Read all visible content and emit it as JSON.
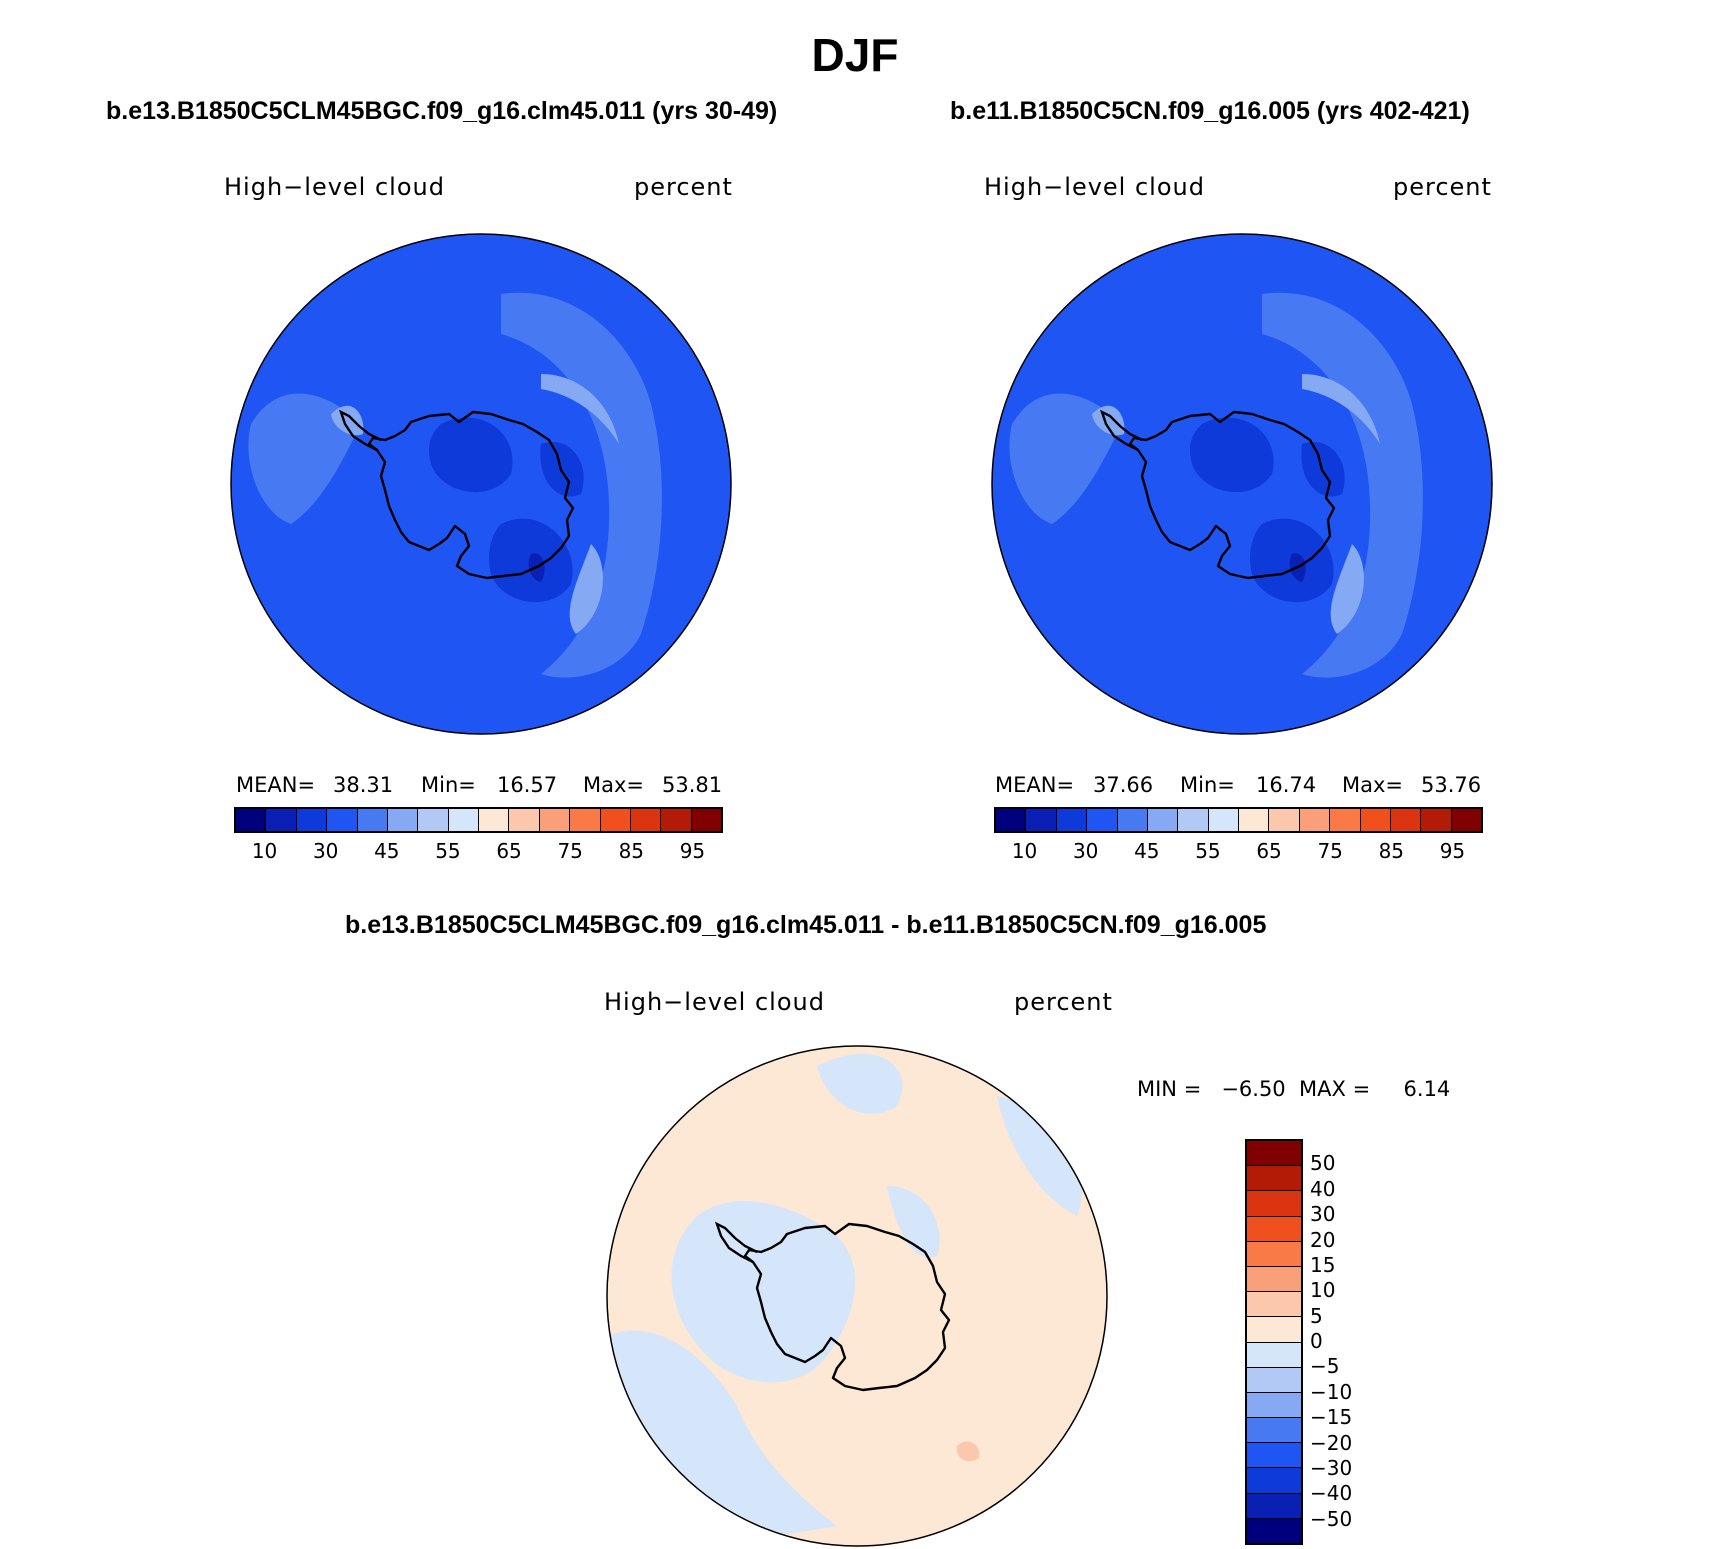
{
  "title": "DJF",
  "panels": {
    "left": {
      "case_title": "b.e13.B1850C5CLM45BGC.f09_g16.clm45.011 (yrs 30-49)",
      "variable": "High−level cloud",
      "units": "percent",
      "mean_label": "MEAN=",
      "mean_value": "38.31",
      "min_label": "Min=",
      "min_value": "16.57",
      "max_label": "Max=",
      "max_value": "53.81"
    },
    "right": {
      "case_title": "b.e11.B1850C5CN.f09_g16.005 (yrs 402-421)",
      "variable": "High−level cloud",
      "units": "percent",
      "mean_label": "MEAN=",
      "mean_value": "37.66",
      "min_label": "Min=",
      "min_value": "16.74",
      "max_label": "Max=",
      "max_value": "53.76"
    },
    "diff": {
      "case_title": "b.e13.B1850C5CLM45BGC.f09_g16.clm45.011 - b.e11.B1850C5CN.f09_g16.005",
      "variable": "High−level cloud",
      "units": "percent",
      "minmax_text": "MIN =   −6.50  MAX =     6.14"
    }
  },
  "colorbar_abs": {
    "ticks": [
      "10",
      "30",
      "45",
      "55",
      "65",
      "75",
      "85",
      "95"
    ],
    "colors": [
      "#00007f",
      "#0a1fb3",
      "#0e3ad9",
      "#1f55f2",
      "#4679f2",
      "#85a9f2",
      "#b3c9f5",
      "#d6e6fa",
      "#fde7d5",
      "#fbc8ac",
      "#f9a07a",
      "#f97a46",
      "#f0501e",
      "#db3410",
      "#b31b07",
      "#800000"
    ]
  },
  "colorbar_diff": {
    "ticks": [
      "50",
      "40",
      "30",
      "20",
      "15",
      "10",
      "5",
      "0",
      "−5",
      "−10",
      "−15",
      "−20",
      "−30",
      "−40",
      "−50"
    ],
    "colors": [
      "#800000",
      "#b31b07",
      "#db3410",
      "#f0501e",
      "#f97a46",
      "#f9a07a",
      "#fbc8ac",
      "#fde7d5",
      "#d6e6fa",
      "#b3c9f5",
      "#85a9f2",
      "#4679f2",
      "#1f55f2",
      "#0e3ad9",
      "#0a1fb3",
      "#00007f"
    ]
  },
  "map_colors": {
    "abs_base": "#1f55f2",
    "abs_light": "#4679f2",
    "abs_lighter": "#85a9f2",
    "abs_dark": "#0e3ad9",
    "abs_darker": "#0a1fb3",
    "diff_base": "#fde7d5",
    "diff_neg": "#d6e6fa",
    "diff_neg2": "#b3c9f5",
    "diff_pos": "#fbc8ac"
  }
}
